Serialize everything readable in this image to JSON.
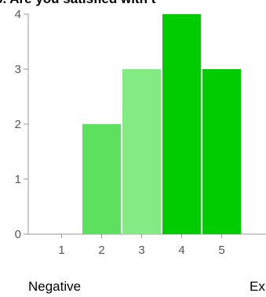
{
  "chart_data": {
    "type": "bar",
    "title": "6. Are you satisfied with t",
    "categories": [
      "1",
      "2",
      "3",
      "4",
      "5"
    ],
    "values": [
      0,
      2,
      3,
      4,
      3
    ],
    "ylim": [
      0,
      4
    ],
    "y_ticks": [
      "0",
      "1",
      "2",
      "3",
      "4"
    ],
    "bar_colors": [
      "#5de05d",
      "#5de05d",
      "#84ea84",
      "#00cc00",
      "#00cc00"
    ],
    "scale_labels": {
      "low": "Negative",
      "high": "Ex"
    },
    "grid": false,
    "legend": "none"
  }
}
